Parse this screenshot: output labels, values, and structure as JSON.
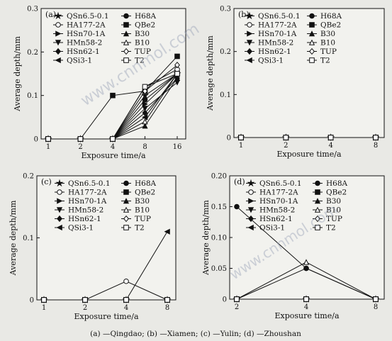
{
  "caption": "(a) —Qingdao; (b) —Xiamen; (c) —Yulin; (d) —Zhoushan",
  "watermark": "www.cnnmol.com",
  "legend_names": [
    "QSn6.5-0.1",
    "HA177-2A",
    "HSn70-1A",
    "HMn58-2",
    "HSn62-1",
    "QSi3-1",
    "H68A",
    "QBe2",
    "B30",
    "B10",
    "TUP",
    "T2"
  ],
  "chart_data": [
    {
      "panel": "(a)",
      "type": "line",
      "xlabel": "Exposure time/a",
      "ylabel": "Average depth/mm",
      "x": [
        "1",
        "2",
        "4",
        "8",
        "16"
      ],
      "ylim": [
        0,
        0.3
      ],
      "yticks": [
        "0",
        "0.1",
        "0.2",
        "0.3"
      ],
      "series": [
        {
          "name": "QSn6.5-0.1",
          "values": [
            0,
            0,
            0,
            0.1,
            0.15
          ]
        },
        {
          "name": "HA177-2A",
          "values": [
            0,
            0,
            0,
            0.12,
            0.16
          ]
        },
        {
          "name": "HSn70-1A",
          "values": [
            0,
            0,
            0,
            0.08,
            0.15
          ]
        },
        {
          "name": "HMn58-2",
          "values": [
            0,
            0,
            0,
            0.07,
            0.13
          ]
        },
        {
          "name": "HSn62-1",
          "values": [
            0,
            0,
            0,
            0.06,
            0.14
          ]
        },
        {
          "name": "QSi3-1",
          "values": [
            0,
            0,
            0,
            0.05,
            0.15
          ]
        },
        {
          "name": "H68A",
          "values": [
            0,
            0,
            0,
            0.09,
            0.15
          ]
        },
        {
          "name": "QBe2",
          "values": [
            0,
            0,
            0.1,
            0.11,
            0.19
          ]
        },
        {
          "name": "B30",
          "values": [
            0,
            0,
            0,
            0.03,
            0.14
          ]
        },
        {
          "name": "B10",
          "values": [
            0,
            0,
            0,
            0.04,
            0.15
          ]
        },
        {
          "name": "TUP",
          "values": [
            0,
            0,
            0,
            0.11,
            0.17
          ]
        },
        {
          "name": "T2",
          "values": [
            0,
            0,
            0,
            0.12,
            0.15
          ]
        }
      ]
    },
    {
      "panel": "(b)",
      "type": "line",
      "xlabel": "Exposure time/a",
      "ylabel": "Average depth/mm",
      "x": [
        "1",
        "2",
        "4",
        "8"
      ],
      "ylim": [
        0,
        0.3
      ],
      "yticks": [
        "0",
        "0.1",
        "0.2",
        "0.3"
      ],
      "series": [
        {
          "name": "QSn6.5-0.1",
          "values": [
            0,
            0,
            0,
            0
          ]
        },
        {
          "name": "HA177-2A",
          "values": [
            0,
            0,
            0,
            0
          ]
        },
        {
          "name": "HSn70-1A",
          "values": [
            0,
            0,
            0,
            0
          ]
        },
        {
          "name": "HMn58-2",
          "values": [
            0,
            0,
            0,
            0
          ]
        },
        {
          "name": "HSn62-1",
          "values": [
            0,
            0,
            0,
            0
          ]
        },
        {
          "name": "QSi3-1",
          "values": [
            0,
            0,
            0,
            0
          ]
        },
        {
          "name": "H68A",
          "values": [
            0,
            0,
            0,
            0
          ]
        },
        {
          "name": "QBe2",
          "values": [
            0,
            0,
            0,
            0
          ]
        },
        {
          "name": "B30",
          "values": [
            0,
            0,
            0,
            0
          ]
        },
        {
          "name": "B10",
          "values": [
            0,
            0,
            0,
            0
          ]
        },
        {
          "name": "TUP",
          "values": [
            0,
            0,
            0,
            0
          ]
        },
        {
          "name": "T2",
          "values": [
            0,
            0,
            0,
            0
          ]
        }
      ]
    },
    {
      "panel": "(c)",
      "type": "line",
      "xlabel": "Exposure time/a",
      "ylabel": "Average depth/mm",
      "x": [
        "1",
        "2",
        "4",
        "8"
      ],
      "ylim": [
        0,
        0.2
      ],
      "yticks": [
        "0",
        "0.1",
        "0.2"
      ],
      "series": [
        {
          "name": "QSn6.5-0.1",
          "values": [
            0,
            0,
            0,
            0
          ]
        },
        {
          "name": "HA177-2A",
          "values": [
            0,
            0,
            0.03,
            0
          ]
        },
        {
          "name": "HSn70-1A",
          "values": [
            0,
            0,
            0,
            0
          ]
        },
        {
          "name": "HMn58-2",
          "values": [
            0,
            0,
            0,
            0
          ]
        },
        {
          "name": "HSn62-1",
          "values": [
            0,
            0,
            0,
            0
          ]
        },
        {
          "name": "QSi3-1",
          "values": [
            0,
            0,
            0,
            0.11
          ]
        },
        {
          "name": "H68A",
          "values": [
            0,
            0,
            0,
            0
          ]
        },
        {
          "name": "QBe2",
          "values": [
            0,
            0,
            0,
            0
          ]
        },
        {
          "name": "B30",
          "values": [
            0,
            0,
            0,
            0
          ]
        },
        {
          "name": "B10",
          "values": [
            0,
            0,
            0,
            0
          ]
        },
        {
          "name": "TUP",
          "values": [
            0,
            0,
            0,
            0
          ]
        },
        {
          "name": "T2",
          "values": [
            0,
            0,
            0,
            0
          ]
        }
      ]
    },
    {
      "panel": "(d)",
      "type": "line",
      "xlabel": "Exposure time/a",
      "ylabel": "Average depth/mm",
      "x": [
        "2",
        "4",
        "8"
      ],
      "ylim": [
        0,
        0.2
      ],
      "yticks": [
        "0",
        "0.05",
        "0.10",
        "0.15",
        "0.20"
      ],
      "series": [
        {
          "name": "QSn6.5-0.1",
          "values": [
            0,
            0,
            0
          ]
        },
        {
          "name": "HA177-2A",
          "values": [
            0,
            0.05,
            0
          ]
        },
        {
          "name": "HSn70-1A",
          "values": [
            0,
            0,
            0
          ]
        },
        {
          "name": "HMn58-2",
          "values": [
            0,
            0,
            0
          ]
        },
        {
          "name": "HSn62-1",
          "values": [
            0,
            0,
            0
          ]
        },
        {
          "name": "QSi3-1",
          "values": [
            0,
            0,
            0
          ]
        },
        {
          "name": "H68A",
          "values": [
            0.15,
            0.05,
            0
          ]
        },
        {
          "name": "QBe2",
          "values": [
            0,
            0,
            0
          ]
        },
        {
          "name": "B30",
          "values": [
            0,
            0,
            0
          ]
        },
        {
          "name": "B10",
          "values": [
            0,
            0.06,
            0
          ]
        },
        {
          "name": "TUP",
          "values": [
            0,
            0,
            0
          ]
        },
        {
          "name": "T2",
          "values": [
            0,
            0,
            0
          ]
        }
      ]
    }
  ]
}
